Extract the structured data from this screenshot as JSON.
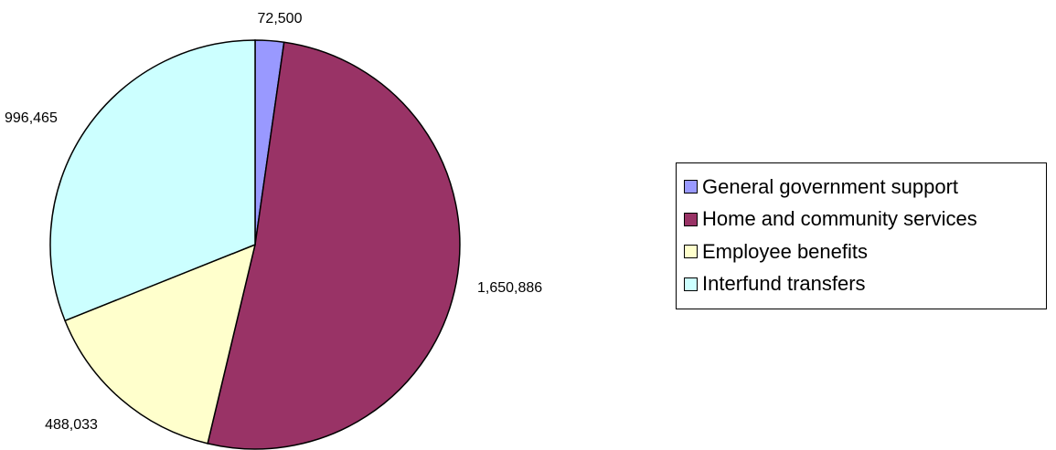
{
  "chart_data": {
    "type": "pie",
    "title": "",
    "categories": [
      "General government support",
      "Home and community services",
      "Employee benefits",
      "Interfund transfers"
    ],
    "values": [
      72500,
      1650886,
      488033,
      996465
    ],
    "data_labels": [
      "72,500",
      "1,650,886",
      "488,033",
      "996,465"
    ],
    "colors": [
      "#9999ff",
      "#993366",
      "#ffffcc",
      "#ccffff"
    ],
    "start_angle_deg": 0,
    "direction": "clockwise",
    "legend_position": "right"
  }
}
